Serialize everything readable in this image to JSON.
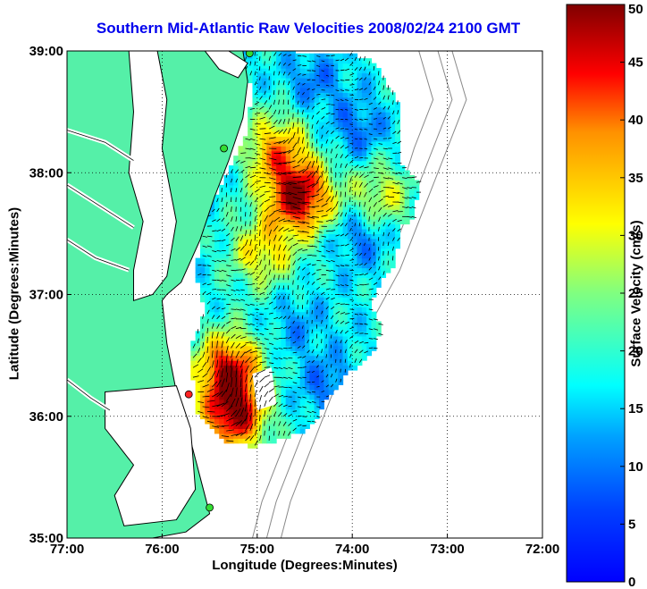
{
  "chart_data": {
    "type": "heatmap",
    "title": "Southern Mid-Atlantic Raw Velocities 2008/02/24 2100 GMT",
    "xlabel": "Longitude (Degrees:Minutes)",
    "ylabel": "Latitude (Degrees:Minutes)",
    "colorbar_label": "Surface Velocity (cm/s)",
    "xlim": [
      -77,
      -72
    ],
    "ylim": [
      35,
      39
    ],
    "x_ticks": [
      -77,
      -76,
      -75,
      -74,
      -73,
      -72
    ],
    "x_tick_labels": [
      "77:00",
      "76:00",
      "75:00",
      "74:00",
      "73:00",
      "72:00"
    ],
    "y_ticks": [
      35,
      36,
      37,
      38,
      39
    ],
    "y_tick_labels": [
      "35:00",
      "36:00",
      "37:00",
      "38:00",
      "39:00"
    ],
    "clim": [
      0,
      50
    ],
    "colorbar_ticks": [
      "0",
      "5",
      "10",
      "15",
      "20",
      "25",
      "30",
      "35",
      "40",
      "45",
      "50"
    ],
    "grid": true,
    "colormap": "jet",
    "colors": {
      "land": "#55f0a8",
      "coast": "#000000",
      "title": "#0000ee",
      "grid": "#000000"
    },
    "velocity_field": {
      "hotspots": [
        {
          "lon": -74.55,
          "lat": 37.8,
          "speed": 48
        },
        {
          "lon": -75.3,
          "lat": 36.4,
          "speed": 44
        },
        {
          "lon": -75.25,
          "lat": 36.0,
          "speed": 46
        },
        {
          "lon": -74.8,
          "lat": 38.2,
          "speed": 36
        },
        {
          "lon": -74.95,
          "lat": 37.35,
          "speed": 32
        },
        {
          "lon": -73.7,
          "lat": 37.8,
          "speed": 30
        }
      ],
      "lowspots": [
        {
          "lon": -74.4,
          "lat": 38.75,
          "speed": 10
        },
        {
          "lon": -73.95,
          "lat": 38.35,
          "speed": 9
        },
        {
          "lon": -73.9,
          "lat": 37.5,
          "speed": 8
        },
        {
          "lon": -74.25,
          "lat": 36.25,
          "speed": 9
        },
        {
          "lon": -74.6,
          "lat": 36.75,
          "speed": 12
        }
      ],
      "background_speed": 17
    }
  }
}
